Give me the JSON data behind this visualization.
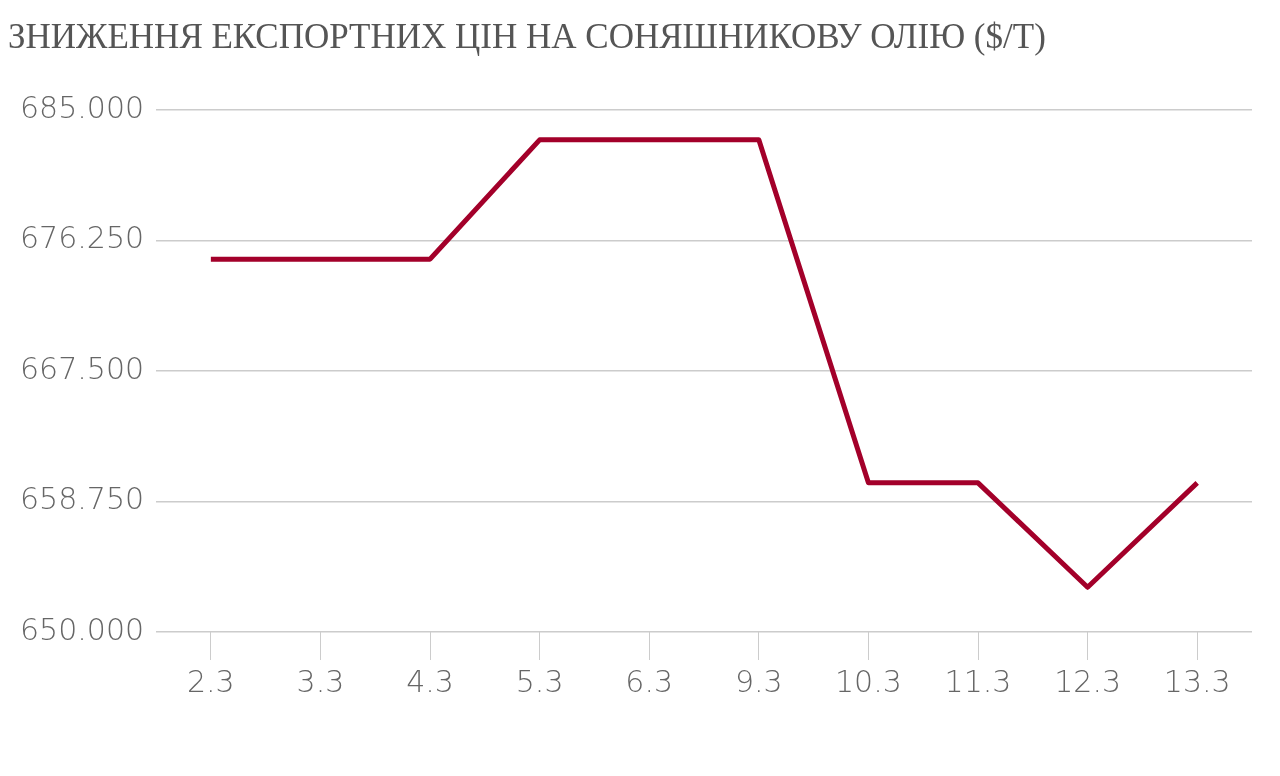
{
  "chart_data": {
    "type": "line",
    "title": "ЗНИЖЕННЯ ЕКСПОРТНИХ ЦІН НА СОНЯШНИКОВУ ОЛІЮ ($/Т)",
    "categories": [
      "2.3",
      "3.3",
      "4.3",
      "5.3",
      "6.3",
      "9.3",
      "10.3",
      "11.3",
      "12.3",
      "13.3"
    ],
    "series": [
      {
        "color": "#a3002a",
        "values": [
          675,
          675,
          675,
          683,
          683,
          683,
          660,
          660,
          653,
          660
        ]
      }
    ],
    "ylim": [
      650,
      685
    ],
    "yticks": [
      {
        "value": 650,
        "label": "650.000"
      },
      {
        "value": 658.75,
        "label": "658.750"
      },
      {
        "value": 667.5,
        "label": "667.500"
      },
      {
        "value": 676.25,
        "label": "676.250"
      },
      {
        "value": 685,
        "label": "685.000"
      }
    ],
    "grid": "y",
    "legend": false,
    "marker": "none",
    "line_style": "solid"
  }
}
